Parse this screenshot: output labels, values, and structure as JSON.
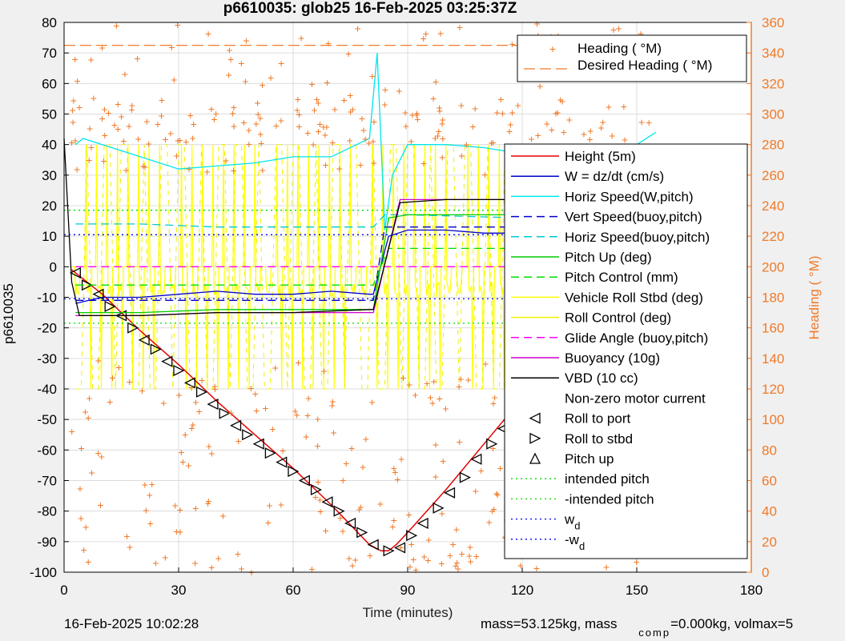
{
  "footer": {
    "datetime": "16-Feb-2025 10:02:28",
    "mass_a": "mass=53.125kg, mass",
    "mass_sub": "comp",
    "mass_b": "=0.000kg, volmax=5"
  },
  "colors": {
    "height": "#e60000",
    "w": "#0000cc",
    "horiz_w": "#00e5ee",
    "vert_buoy": "#0000cc",
    "horiz_buoy": "#00c8d0",
    "pitch_up": "#00cc00",
    "pitch_control": "#00dd00",
    "roll_stbd": "#ffff00",
    "roll_control": "#f0f000",
    "glide": "#ff00ff",
    "buoyancy": "#cc00cc",
    "vbd": "#000000",
    "heading": "#f07a28",
    "intended": "#00dd00",
    "wd": "#0000ff",
    "axis": "#000000",
    "right_axis": "#f07a28",
    "background": "#ffffff",
    "grid": "#dcdcdc"
  },
  "chart_data": {
    "type": "line",
    "title": "p6610035: glob25 16-Feb-2025 03:25:37Z",
    "xlabel": "Time (minutes)",
    "ylabel": "p6610035",
    "y2label": "Heading (  °M)",
    "xlim": [
      0,
      180
    ],
    "ylim": [
      -100,
      80
    ],
    "y2lim": [
      0,
      360
    ],
    "xticks": [
      0,
      30,
      60,
      90,
      120,
      150,
      180
    ],
    "yticks": [
      80,
      70,
      60,
      50,
      40,
      30,
      20,
      10,
      0,
      -10,
      -20,
      -30,
      -40,
      -50,
      -60,
      -70,
      -80,
      -90,
      -100
    ],
    "y2ticks": [
      360,
      340,
      320,
      300,
      280,
      260,
      240,
      220,
      200,
      180,
      160,
      140,
      120,
      100,
      80,
      60,
      40,
      20,
      0
    ],
    "grid": true,
    "legend_main": {
      "placement": "right",
      "entries": [
        "Height (5m)",
        "W = dz/dt (cm/s)",
        "Horiz Speed(W,pitch)",
        "Vert Speed(buoy,pitch)",
        "Horiz Speed(buoy,pitch)",
        "Pitch Up (deg)",
        "Pitch Control (mm)",
        "Vehicle Roll Stbd (deg)",
        "Roll Control (deg)",
        "Glide Angle (buoy,pitch)",
        "Buoyancy (10g)",
        "VBD (10 cc)",
        "Non-zero motor current",
        "Roll to port",
        "Roll to stbd",
        "Pitch up",
        "intended pitch",
        "-intended pitch",
        "w",
        "-w"
      ],
      "subscript": "d"
    },
    "legend_heading": {
      "placement": "top-right",
      "entries": [
        "Heading (  °M)",
        "Desired Heading (    °M)"
      ]
    },
    "series": [
      {
        "name": "Height (5m)",
        "x": [
          2,
          10,
          20,
          30,
          40,
          50,
          60,
          70,
          80,
          83,
          85,
          87,
          90,
          100,
          110,
          120,
          130,
          140,
          150,
          155
        ],
        "y": [
          -1,
          -9,
          -21,
          -32,
          -44,
          -55,
          -66,
          -78,
          -91,
          -93,
          -93,
          -91,
          -87,
          -73,
          -58,
          -43,
          -28,
          -16,
          -6,
          0
        ]
      },
      {
        "name": "Height (5m)",
        "type": "markers",
        "marker": "roll_port",
        "x": [
          3,
          9,
          15,
          21,
          27,
          33,
          39,
          45,
          51,
          57,
          63,
          69,
          75,
          81,
          88,
          94,
          101,
          108,
          115,
          122,
          129,
          136,
          143,
          150
        ],
        "y": [
          -2,
          -9,
          -16,
          -24,
          -31,
          -38,
          -45,
          -52,
          -58,
          -64,
          -70,
          -77,
          -84,
          -91,
          -92,
          -84,
          -74,
          -63,
          -53,
          -45,
          -37,
          -28,
          -19,
          -10
        ]
      },
      {
        "name": "Height (5m)",
        "type": "markers",
        "marker": "roll_stbd",
        "x": [
          6,
          12,
          18,
          24,
          30,
          36,
          42,
          48,
          54,
          60,
          66,
          72,
          78,
          85,
          91,
          98,
          105,
          112,
          119,
          126,
          133,
          140,
          147,
          154
        ],
        "y": [
          -6,
          -13,
          -20,
          -27,
          -34,
          -41,
          -48,
          -55,
          -61,
          -67,
          -73,
          -80,
          -87,
          -93,
          -88,
          -79,
          -69,
          -58,
          -48,
          -40,
          -32,
          -24,
          -14,
          -2
        ]
      },
      {
        "name": "W = dz/dt (cm/s)",
        "x": [
          3,
          10,
          20,
          30,
          40,
          50,
          60,
          70,
          80,
          81,
          85,
          90,
          100,
          110,
          120,
          130,
          140,
          150,
          155
        ],
        "y": [
          -12,
          -10,
          -10,
          -9,
          -8,
          -9,
          -9,
          -8,
          -9,
          -9,
          10,
          12,
          12,
          11,
          11,
          11,
          11,
          11,
          10
        ]
      },
      {
        "name": "Horiz Speed(W,pitch)",
        "x": [
          3,
          5,
          10,
          20,
          30,
          40,
          50,
          60,
          70,
          80,
          82,
          84,
          86,
          90,
          100,
          110,
          120,
          130,
          140,
          150,
          155
        ],
        "y": [
          40,
          42,
          40,
          36,
          32,
          33,
          34,
          36,
          36,
          42,
          70,
          12,
          30,
          40,
          40,
          39,
          37,
          38,
          36,
          40,
          44
        ]
      },
      {
        "name": "Vert Speed(buoy,pitch)",
        "x": [
          3,
          20,
          40,
          60,
          80,
          81,
          84,
          90,
          120,
          155
        ],
        "y": [
          -11,
          -11,
          -11,
          -11,
          -11,
          -11,
          13,
          13,
          13,
          13
        ]
      },
      {
        "name": "Horiz Speed(buoy,pitch)",
        "x": [
          3,
          20,
          40,
          60,
          80,
          81,
          84,
          90,
          120,
          155
        ],
        "y": [
          14,
          14,
          13,
          13,
          13,
          13,
          17,
          17,
          16,
          16
        ]
      },
      {
        "name": "Pitch Up (deg)",
        "x": [
          3,
          20,
          40,
          60,
          80,
          81,
          85,
          90,
          120,
          155
        ],
        "y": [
          -15,
          -15,
          -14,
          -14,
          -14,
          -14,
          16,
          17,
          17,
          16
        ]
      },
      {
        "name": "Pitch Control (mm)",
        "x": [
          3,
          20,
          40,
          60,
          80,
          81,
          85,
          90,
          120,
          155
        ],
        "y": [
          -6,
          -6,
          -6,
          -6,
          -6,
          -6,
          6,
          6,
          6,
          6
        ]
      },
      {
        "name": "Glide Angle (buoy,pitch)",
        "x": [
          3,
          20,
          40,
          60,
          80,
          155
        ],
        "y": [
          0,
          0,
          0,
          0,
          0,
          0
        ]
      },
      {
        "name": "Buoyancy (10g)",
        "x": [
          3,
          20,
          40,
          60,
          80,
          81,
          88,
          100,
          130,
          145,
          146,
          155
        ],
        "y": [
          -16,
          -16,
          -15,
          -15,
          -15,
          -15,
          22,
          22,
          22,
          23,
          28,
          28
        ]
      },
      {
        "name": "VBD (10 cc)",
        "x": [
          0,
          2,
          4,
          20,
          40,
          60,
          80,
          81,
          88,
          100,
          130,
          140,
          150,
          155
        ],
        "y": [
          42,
          -5,
          -16,
          -16,
          -15,
          -15,
          -14,
          -14,
          21,
          22,
          22,
          23,
          26,
          27
        ]
      },
      {
        "name": "intended pitch",
        "x": [
          0,
          155
        ],
        "y": [
          18.5,
          18.5
        ]
      },
      {
        "name": "-intended pitch",
        "x": [
          0,
          155
        ],
        "y": [
          -18.5,
          -18.5
        ]
      },
      {
        "name": "w",
        "x": [
          0,
          155
        ],
        "y": [
          10.5,
          10.5
        ]
      },
      {
        "name": "-w",
        "x": [
          0,
          155
        ],
        "y": [
          -10.5,
          -10.5
        ]
      },
      {
        "name": "Desired Heading (    °M)",
        "axis": "right",
        "x": [
          0,
          155
        ],
        "y": [
          345,
          345
        ]
      }
    ]
  }
}
